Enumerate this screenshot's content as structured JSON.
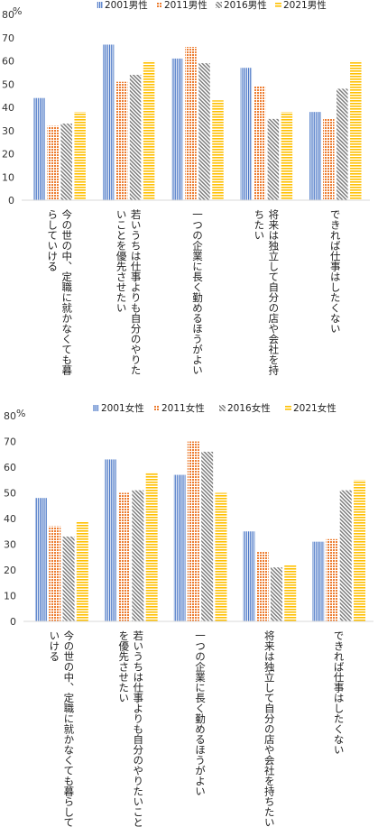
{
  "chart_data": [
    {
      "type": "bar",
      "title": "",
      "xlabel": "",
      "ylabel": "%",
      "ylim": [
        0,
        80
      ],
      "yticks": [
        0,
        10,
        20,
        30,
        40,
        50,
        60,
        70,
        80
      ],
      "grid": false,
      "legend_position": "top",
      "categories": [
        [
          "今の世の中、定職に就かなくても暮",
          "らしていける"
        ],
        [
          "若いうちは仕事よりも自分のやりた",
          "いことを優先させたい"
        ],
        [
          "一つの企業に長く勤めるほうがよい"
        ],
        [
          "将来は独立して自分の店や会社を持",
          "ちたい"
        ],
        [
          "できれば仕事はしたくない"
        ]
      ],
      "series": [
        {
          "name": "2001男性",
          "pattern": "vertical-stripes",
          "color": "#4472c4",
          "values": [
            44,
            67,
            61,
            57,
            38
          ]
        },
        {
          "name": "2011男性",
          "pattern": "dots",
          "color": "#ed7d31",
          "values": [
            32,
            51,
            66,
            49,
            35
          ]
        },
        {
          "name": "2016男性",
          "pattern": "diagonal-stripes",
          "color": "#7f7f7f",
          "values": [
            33,
            54,
            59,
            35,
            48
          ]
        },
        {
          "name": "2021男性",
          "pattern": "horizontal-stripes",
          "color": "#ffc000",
          "values": [
            38,
            60,
            43,
            38,
            60
          ]
        }
      ]
    },
    {
      "type": "bar",
      "title": "",
      "xlabel": "",
      "ylabel": "%",
      "ylim": [
        0,
        80
      ],
      "yticks": [
        0,
        10,
        20,
        30,
        40,
        50,
        60,
        70,
        80
      ],
      "grid": false,
      "legend_position": "top",
      "categories": [
        [
          "今の世の中、定職に就かなくても暮らして",
          "いける"
        ],
        [
          "若いうちは仕事よりも自分のやりたいこと",
          "を優先させたい"
        ],
        [
          "一つの企業に長く勤めるほうがよい"
        ],
        [
          "将来は独立して自分の店や会社を持ちたい"
        ],
        [
          "できれば仕事はしたくない"
        ]
      ],
      "series": [
        {
          "name": "2001女性",
          "pattern": "vertical-stripes",
          "color": "#4472c4",
          "values": [
            48,
            63,
            57,
            35,
            31
          ]
        },
        {
          "name": "2011女性",
          "pattern": "dots",
          "color": "#ed7d31",
          "values": [
            37,
            50,
            70,
            27,
            32
          ]
        },
        {
          "name": "2016女性",
          "pattern": "diagonal-stripes",
          "color": "#7f7f7f",
          "values": [
            33,
            51,
            66,
            21,
            51
          ]
        },
        {
          "name": "2021女性",
          "pattern": "horizontal-stripes",
          "color": "#ffc000",
          "values": [
            39,
            58,
            50,
            22,
            55
          ]
        }
      ]
    }
  ]
}
